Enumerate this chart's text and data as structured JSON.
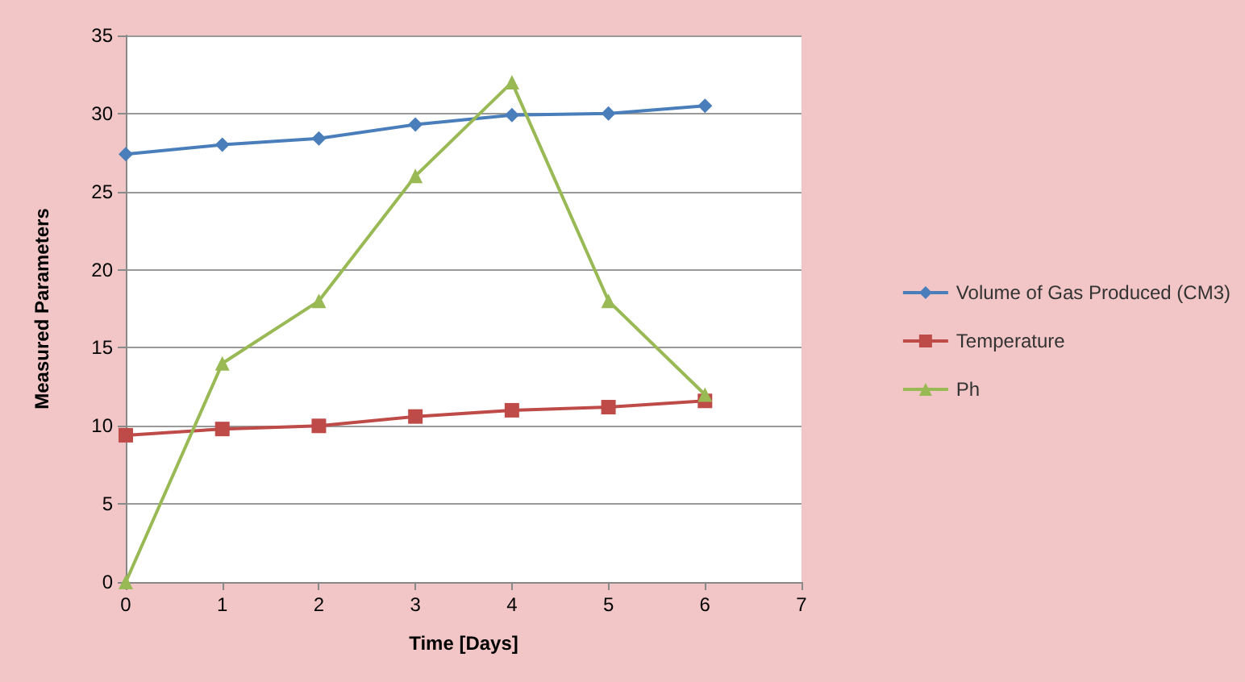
{
  "chart_data": {
    "type": "line",
    "xlabel": "Time [Days]",
    "ylabel": "Measured Parameters",
    "x": [
      0,
      1,
      2,
      3,
      4,
      5,
      6
    ],
    "series": [
      {
        "name": "Volume of Gas Produced (CM3)",
        "color": "#4a7ebb",
        "marker": "diamond",
        "values": [
          27.4,
          28.0,
          28.4,
          29.3,
          29.9,
          30.0,
          30.5
        ]
      },
      {
        "name": "Temperature",
        "color": "#be4b48",
        "marker": "square",
        "values": [
          9.4,
          9.8,
          10.0,
          10.6,
          11.0,
          11.2,
          11.6
        ]
      },
      {
        "name": "Ph",
        "color": "#98b954",
        "marker": "triangle",
        "values": [
          0,
          14,
          18,
          26,
          32,
          18,
          12
        ]
      }
    ],
    "xlim": [
      0,
      7
    ],
    "xticks": [
      0,
      1,
      2,
      3,
      4,
      5,
      6,
      7
    ],
    "ylim": [
      0,
      35
    ],
    "yticks": [
      0,
      5,
      10,
      15,
      20,
      25,
      30,
      35
    ],
    "grid": "y",
    "legend": "right"
  }
}
